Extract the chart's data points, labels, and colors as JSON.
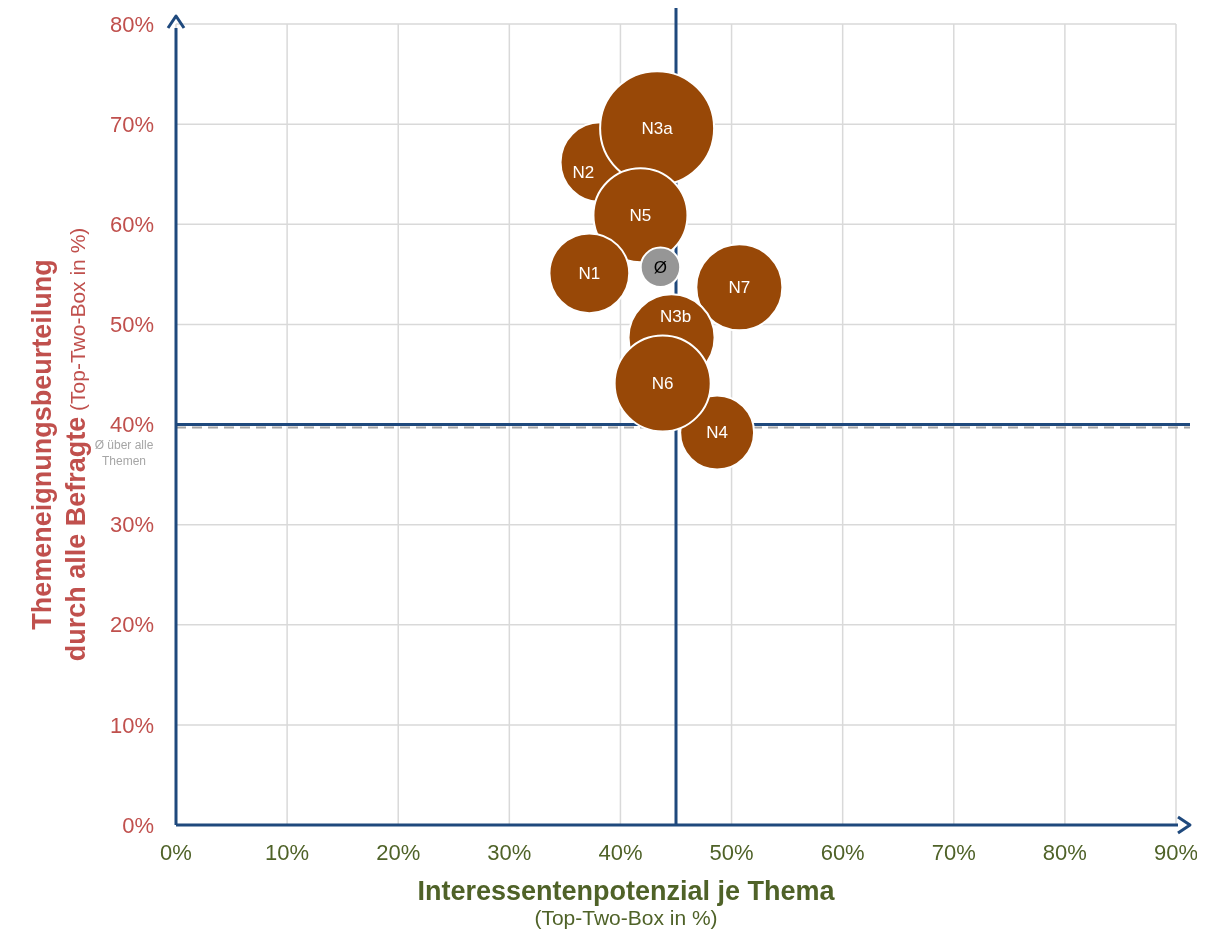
{
  "chart_data": {
    "type": "bubble",
    "xlabel": "Interessentenpotenzial je Thema (Top-Two-Box in %)",
    "ylabel": "Themeneignungsbeurteilung durch alle Befragte (Top-Two-Box in %)",
    "xlim": [
      0,
      90
    ],
    "ylim": [
      0,
      80
    ],
    "xticks": [
      {
        "value": 0,
        "label": "0%"
      },
      {
        "value": 10,
        "label": "10%"
      },
      {
        "value": 20,
        "label": "20%"
      },
      {
        "value": 30,
        "label": "30%"
      },
      {
        "value": 40,
        "label": "40%"
      },
      {
        "value": 50,
        "label": "50%"
      },
      {
        "value": 60,
        "label": "60%"
      },
      {
        "value": 70,
        "label": "70%"
      },
      {
        "value": 80,
        "label": "80%"
      },
      {
        "value": 90,
        "label": "90%"
      }
    ],
    "yticks": [
      {
        "value": 0,
        "label": "0%"
      },
      {
        "value": 10,
        "label": "10%"
      },
      {
        "value": 20,
        "label": "20%"
      },
      {
        "value": 30,
        "label": "30%"
      },
      {
        "value": 40,
        "label": "40%"
      },
      {
        "value": 50,
        "label": "50%"
      },
      {
        "value": 60,
        "label": "60%"
      },
      {
        "value": 70,
        "label": "70%"
      },
      {
        "value": 80,
        "label": "80%"
      }
    ],
    "grid": true,
    "legend": false,
    "ref_lines": [
      {
        "axis": "x",
        "value": 45,
        "color": "#1f497d"
      },
      {
        "axis": "y",
        "value": 40,
        "color": "#1f497d"
      },
      {
        "axis": "y",
        "value": 39.7,
        "label": "Ø über alle Themen",
        "color": "#a6a6a6",
        "line_style": "dashed"
      }
    ],
    "series": [
      {
        "name": "N2",
        "color": "#984807",
        "x": [
          38.2
        ],
        "values": [
          66.2
        ],
        "sizes": [
          0.49
        ]
      },
      {
        "name": "N3a",
        "color": "#984807",
        "x": [
          43.3
        ],
        "values": [
          69.6
        ],
        "sizes": [
          1
        ]
      },
      {
        "name": "N5",
        "color": "#984807",
        "x": [
          41.8
        ],
        "values": [
          60.9
        ],
        "sizes": [
          0.68
        ]
      },
      {
        "name": "N1",
        "color": "#984807",
        "x": [
          37.2
        ],
        "values": [
          55.1
        ],
        "sizes": [
          0.49
        ]
      },
      {
        "name": "Ø",
        "color": "#969696",
        "x": [
          43.6
        ],
        "values": [
          55.7
        ],
        "sizes": [
          0.12
        ]
      },
      {
        "name": "N7",
        "color": "#984807",
        "x": [
          50.7
        ],
        "values": [
          53.7
        ],
        "sizes": [
          0.57
        ]
      },
      {
        "name": "N3b",
        "color": "#984807",
        "x": [
          44.6
        ],
        "values": [
          48.7
        ],
        "sizes": [
          0.57
        ]
      },
      {
        "name": "N4",
        "color": "#984807",
        "x": [
          48.7
        ],
        "values": [
          39.2
        ],
        "sizes": [
          0.42
        ]
      },
      {
        "name": "N6",
        "color": "#984807",
        "x": [
          43.8
        ],
        "values": [
          44.1
        ],
        "sizes": [
          0.71
        ]
      }
    ]
  }
}
